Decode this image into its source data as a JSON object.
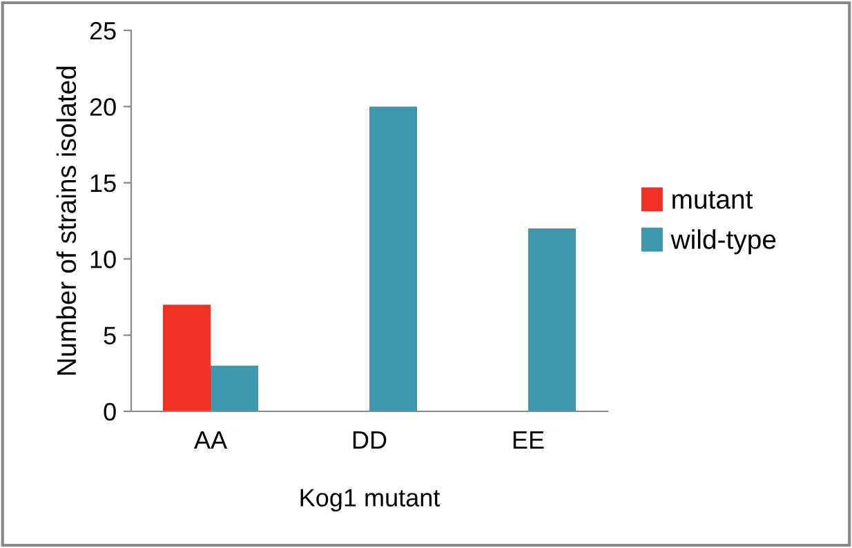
{
  "chart_data": {
    "type": "bar",
    "xlabel": "Kog1 mutant",
    "ylabel": "Number of strains isolated",
    "categories": [
      "AA",
      "DD",
      "EE"
    ],
    "series": [
      {
        "name": "mutant",
        "color": "#ee3124",
        "values": [
          7,
          null,
          null
        ]
      },
      {
        "name": "wild-type",
        "color": "#3d98ae",
        "values": [
          3,
          20,
          12
        ]
      }
    ],
    "ylim": [
      0,
      25
    ],
    "yticks": [
      0,
      5,
      10,
      15,
      20,
      25
    ],
    "grid": false,
    "legend": "right"
  }
}
